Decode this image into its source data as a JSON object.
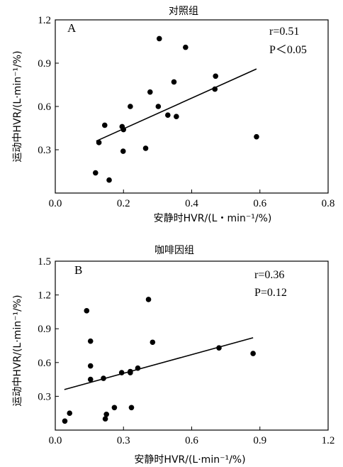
{
  "chart_data": [
    {
      "type": "scatter",
      "panel_label": "A",
      "title": "对照组",
      "xlabel": "安静时HVR/(L・min⁻¹/%)",
      "ylabel": "运动中HVR/(L·min⁻¹/%)",
      "xlim": [
        0.0,
        0.8
      ],
      "ylim": [
        0.0,
        1.2
      ],
      "xticks": [
        0.0,
        0.2,
        0.4,
        0.6,
        0.8
      ],
      "xtick_labels": [
        "0.0",
        "0.2",
        "0.4",
        "0.6",
        "0.8"
      ],
      "yticks": [
        0.3,
        0.6,
        0.9,
        1.2
      ],
      "ytick_labels": [
        "0.3",
        "0.6",
        "0.9",
        "1.2"
      ],
      "annotation_r": "r=0.51",
      "annotation_p": "P＜0.05",
      "points": [
        {
          "x": 0.305,
          "y": 1.07
        },
        {
          "x": 0.382,
          "y": 1.01
        },
        {
          "x": 0.47,
          "y": 0.81
        },
        {
          "x": 0.468,
          "y": 0.72
        },
        {
          "x": 0.348,
          "y": 0.77
        },
        {
          "x": 0.278,
          "y": 0.7
        },
        {
          "x": 0.22,
          "y": 0.6
        },
        {
          "x": 0.302,
          "y": 0.6
        },
        {
          "x": 0.33,
          "y": 0.54
        },
        {
          "x": 0.355,
          "y": 0.53
        },
        {
          "x": 0.145,
          "y": 0.47
        },
        {
          "x": 0.196,
          "y": 0.46
        },
        {
          "x": 0.2,
          "y": 0.44
        },
        {
          "x": 0.128,
          "y": 0.35
        },
        {
          "x": 0.59,
          "y": 0.39
        },
        {
          "x": 0.265,
          "y": 0.31
        },
        {
          "x": 0.199,
          "y": 0.29
        },
        {
          "x": 0.118,
          "y": 0.14
        },
        {
          "x": 0.158,
          "y": 0.09
        }
      ],
      "trendline": {
        "x": [
          0.12,
          0.59
        ],
        "y": [
          0.36,
          0.86
        ]
      }
    },
    {
      "type": "scatter",
      "panel_label": "B",
      "title": "咖啡因组",
      "xlabel": "安静时HVR/(L·min⁻¹/%)",
      "ylabel": "运动中HVR/(L·min⁻¹/%)",
      "xlim": [
        0.0,
        1.2
      ],
      "ylim": [
        0.0,
        1.5
      ],
      "xticks": [
        0.0,
        0.3,
        0.6,
        0.9,
        1.2
      ],
      "xtick_labels": [
        "0.0",
        "0.3",
        "0.6",
        "0.9",
        "1.2"
      ],
      "yticks": [
        0.3,
        0.6,
        0.9,
        1.2,
        1.5
      ],
      "ytick_labels": [
        "0.3",
        "0.6",
        "0.9",
        "1.2",
        "1.5"
      ],
      "annotation_r": "r=0.36",
      "annotation_p": "P=0.12",
      "points": [
        {
          "x": 0.138,
          "y": 1.06
        },
        {
          "x": 0.41,
          "y": 1.16
        },
        {
          "x": 0.155,
          "y": 0.79
        },
        {
          "x": 0.428,
          "y": 0.78
        },
        {
          "x": 0.72,
          "y": 0.73
        },
        {
          "x": 0.87,
          "y": 0.68
        },
        {
          "x": 0.155,
          "y": 0.57
        },
        {
          "x": 0.363,
          "y": 0.55
        },
        {
          "x": 0.292,
          "y": 0.51
        },
        {
          "x": 0.33,
          "y": 0.52
        },
        {
          "x": 0.33,
          "y": 0.51
        },
        {
          "x": 0.155,
          "y": 0.45
        },
        {
          "x": 0.212,
          "y": 0.46
        },
        {
          "x": 0.26,
          "y": 0.2
        },
        {
          "x": 0.335,
          "y": 0.2
        },
        {
          "x": 0.063,
          "y": 0.15
        },
        {
          "x": 0.225,
          "y": 0.14
        },
        {
          "x": 0.22,
          "y": 0.1
        },
        {
          "x": 0.042,
          "y": 0.08
        }
      ],
      "trendline": {
        "x": [
          0.04,
          0.87
        ],
        "y": [
          0.36,
          0.82
        ]
      }
    }
  ]
}
